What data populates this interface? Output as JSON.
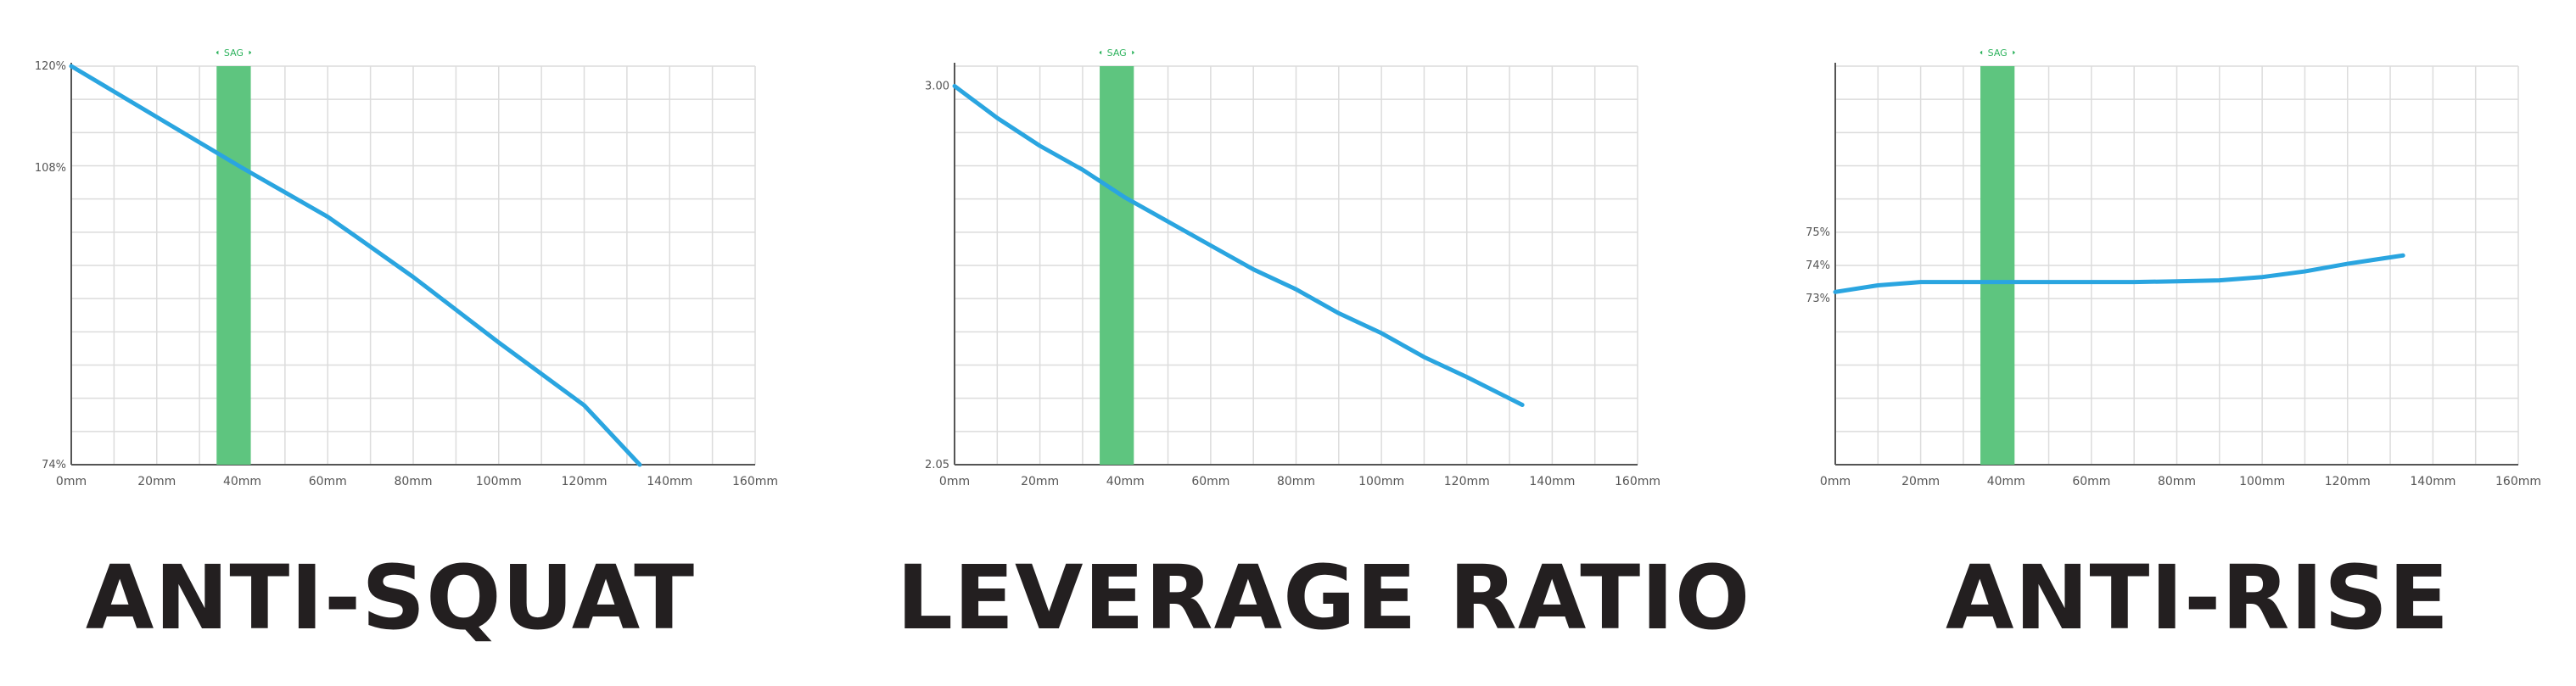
{
  "colors": {
    "line": "#2aa5e0",
    "sag": "#5ec57f",
    "sag_label": "#2fb35e",
    "grid": "#dcdcdc",
    "axis": "#555555",
    "tick": "#555555",
    "title": "#231f20"
  },
  "sag_label": "SAG",
  "chart_data": [
    {
      "type": "line",
      "title": "ANTI-SQUAT",
      "x_unit": "mm",
      "xlim": [
        0,
        160
      ],
      "x_ticks": [
        "0mm",
        "20mm",
        "40mm",
        "60mm",
        "80mm",
        "100mm",
        "120mm",
        "140mm",
        "160mm"
      ],
      "ylim": [
        74,
        120
      ],
      "y_ticks": [
        {
          "value": 120,
          "label": "120%"
        },
        {
          "value": 108,
          "label": "108%"
        },
        {
          "value": 74,
          "label": "74%"
        }
      ],
      "sag_range": [
        34,
        42
      ],
      "series": [
        {
          "x": [
            0,
            10,
            20,
            30,
            40,
            50,
            60,
            67,
            80,
            100,
            120,
            133
          ],
          "y": [
            120,
            117,
            114,
            111,
            108,
            105.2,
            102.4,
            100,
            95.5,
            88,
            80.8,
            74
          ]
        }
      ],
      "grid": true
    },
    {
      "type": "line",
      "title": "LEVERAGE RATIO",
      "x_unit": "mm",
      "xlim": [
        0,
        160
      ],
      "x_ticks": [
        "0mm",
        "20mm",
        "40mm",
        "60mm",
        "80mm",
        "100mm",
        "120mm",
        "140mm",
        "160mm"
      ],
      "ylim": [
        2.05,
        3.05
      ],
      "y_ticks": [
        {
          "value": 3.0,
          "label": "3.00"
        },
        {
          "value": 2.05,
          "label": "2.05"
        }
      ],
      "sag_range": [
        34,
        42
      ],
      "series": [
        {
          "x": [
            0,
            10,
            20,
            30,
            40,
            50,
            60,
            70,
            80,
            90,
            100,
            110,
            120,
            133
          ],
          "y": [
            3.0,
            2.92,
            2.85,
            2.79,
            2.72,
            2.66,
            2.6,
            2.54,
            2.49,
            2.43,
            2.38,
            2.32,
            2.27,
            2.2
          ]
        }
      ],
      "grid": true
    },
    {
      "type": "line",
      "title": "ANTI-RISE",
      "x_unit": "mm",
      "xlim": [
        0,
        160
      ],
      "x_ticks": [
        "0mm",
        "20mm",
        "40mm",
        "60mm",
        "80mm",
        "100mm",
        "120mm",
        "140mm",
        "160mm"
      ],
      "ylim": [
        68,
        80
      ],
      "y_ticks": [
        {
          "value": 75,
          "label": "75%"
        },
        {
          "value": 74,
          "label": "74%"
        },
        {
          "value": 73,
          "label": "73%"
        }
      ],
      "sag_range": [
        34,
        42
      ],
      "series": [
        {
          "x": [
            0,
            10,
            20,
            30,
            40,
            50,
            60,
            70,
            80,
            90,
            100,
            110,
            120,
            133
          ],
          "y": [
            73.2,
            73.4,
            73.5,
            73.5,
            73.5,
            73.5,
            73.5,
            73.5,
            73.52,
            73.55,
            73.65,
            73.82,
            74.05,
            74.3
          ]
        }
      ],
      "grid": true
    }
  ]
}
